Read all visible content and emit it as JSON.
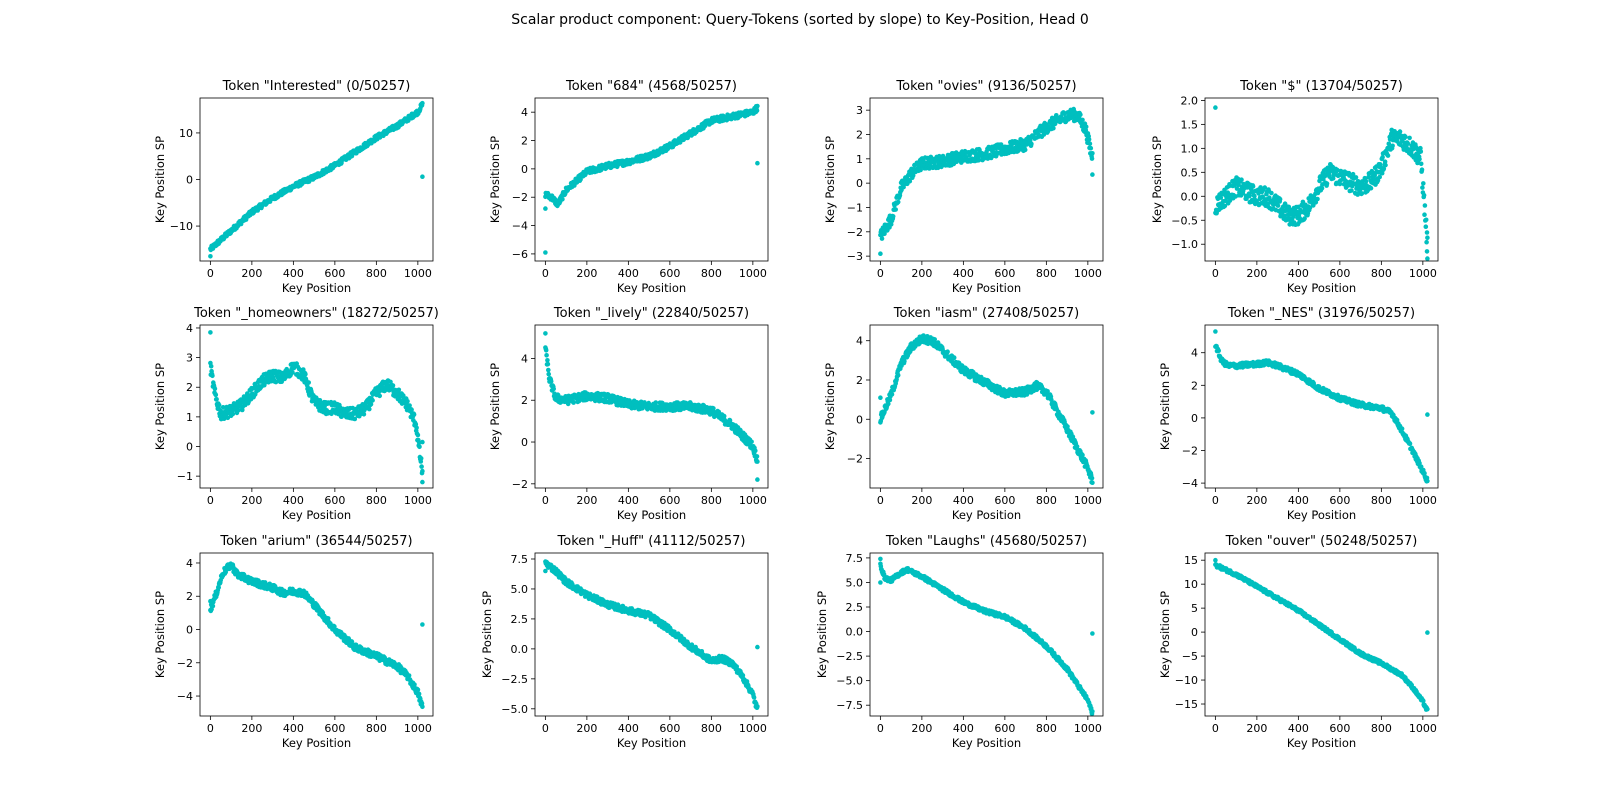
{
  "figure": {
    "title": "Scalar product component: Query-Tokens (sorted by slope) to Key-Position, Head 0",
    "marker_color": "#00BFBF"
  },
  "chart_data": [
    {
      "type": "scatter",
      "title": "Token \"Interested\" (0/50257)",
      "xlabel": "Key Position",
      "ylabel": "Key Position SP",
      "xlim": [
        -50,
        1073
      ],
      "ylim": [
        -17.5,
        17.5
      ],
      "xticks": [
        0,
        200,
        400,
        600,
        800,
        1000
      ],
      "yticks": [
        -10,
        0,
        10
      ],
      "curve": [
        [
          0,
          -15
        ],
        [
          100,
          -11
        ],
        [
          200,
          -7
        ],
        [
          300,
          -4
        ],
        [
          400,
          -1.5
        ],
        [
          500,
          0.5
        ],
        [
          600,
          3
        ],
        [
          700,
          6
        ],
        [
          800,
          9
        ],
        [
          900,
          11.5
        ],
        [
          1000,
          14.5
        ],
        [
          1020,
          16
        ]
      ],
      "noise": 0.5,
      "outliers": [
        [
          0,
          -16.5
        ],
        [
          1022,
          0.6
        ]
      ]
    },
    {
      "type": "scatter",
      "title": "Token \"684\" (4568/50257)",
      "xlabel": "Key Position",
      "ylabel": "Key Position SP",
      "xlim": [
        -50,
        1073
      ],
      "ylim": [
        -6.5,
        5
      ],
      "xticks": [
        0,
        200,
        400,
        600,
        800,
        1000
      ],
      "yticks": [
        -6,
        -4,
        -2,
        0,
        2,
        4
      ],
      "curve": [
        [
          0,
          -1.8
        ],
        [
          30,
          -2
        ],
        [
          60,
          -2.5
        ],
        [
          100,
          -1.5
        ],
        [
          200,
          -0.2
        ],
        [
          300,
          0.2
        ],
        [
          400,
          0.5
        ],
        [
          500,
          0.9
        ],
        [
          600,
          1.6
        ],
        [
          700,
          2.5
        ],
        [
          800,
          3.4
        ],
        [
          900,
          3.7
        ],
        [
          1000,
          4
        ],
        [
          1020,
          4.3
        ]
      ],
      "noise": 0.2,
      "outliers": [
        [
          0,
          -5.9
        ],
        [
          0,
          -2.8
        ],
        [
          1022,
          0.4
        ]
      ]
    },
    {
      "type": "scatter",
      "title": "Token \"ovies\" (9136/50257)",
      "xlabel": "Key Position",
      "ylabel": "Key Position SP",
      "xlim": [
        -50,
        1073
      ],
      "ylim": [
        -3.2,
        3.5
      ],
      "xticks": [
        0,
        200,
        400,
        600,
        800,
        1000
      ],
      "yticks": [
        -3,
        -2,
        -1,
        0,
        1,
        2,
        3
      ],
      "curve": [
        [
          0,
          -2.2
        ],
        [
          50,
          -1.5
        ],
        [
          100,
          -0.2
        ],
        [
          150,
          0.4
        ],
        [
          200,
          0.8
        ],
        [
          300,
          0.9
        ],
        [
          400,
          1.1
        ],
        [
          500,
          1.2
        ],
        [
          600,
          1.4
        ],
        [
          700,
          1.6
        ],
        [
          800,
          2.3
        ],
        [
          900,
          2.8
        ],
        [
          950,
          2.8
        ],
        [
          990,
          2.2
        ],
        [
          1020,
          1.1
        ]
      ],
      "noise": 0.25,
      "outliers": [
        [
          0,
          -2.9
        ],
        [
          1022,
          0.35
        ]
      ]
    },
    {
      "type": "scatter",
      "title": "Token \"$\" (13704/50257)",
      "xlabel": "Key Position",
      "ylabel": "Key Position SP",
      "xlim": [
        -50,
        1073
      ],
      "ylim": [
        -1.35,
        2.05
      ],
      "xticks": [
        0,
        200,
        400,
        600,
        800,
        1000
      ],
      "yticks": [
        -1.0,
        -0.5,
        0.0,
        0.5,
        1.0,
        1.5,
        2.0
      ],
      "curve": [
        [
          0,
          -0.2
        ],
        [
          50,
          0.0
        ],
        [
          100,
          0.2
        ],
        [
          150,
          0.1
        ],
        [
          200,
          0.0
        ],
        [
          250,
          0.0
        ],
        [
          300,
          -0.2
        ],
        [
          350,
          -0.4
        ],
        [
          400,
          -0.4
        ],
        [
          450,
          -0.2
        ],
        [
          500,
          0.2
        ],
        [
          550,
          0.5
        ],
        [
          600,
          0.4
        ],
        [
          650,
          0.3
        ],
        [
          700,
          0.2
        ],
        [
          750,
          0.3
        ],
        [
          800,
          0.6
        ],
        [
          850,
          1.2
        ],
        [
          900,
          1.2
        ],
        [
          950,
          1.0
        ],
        [
          990,
          0.8
        ],
        [
          1020,
          -0.9
        ]
      ],
      "noise": 0.2,
      "outliers": [
        [
          0,
          1.85
        ],
        [
          1022,
          -1.3
        ],
        [
          1020,
          -1.15
        ]
      ]
    },
    {
      "type": "scatter",
      "title": "Token \"_homeowners\" (18272/50257)",
      "xlabel": "Key Position",
      "ylabel": "Key Position SP",
      "xlim": [
        -50,
        1073
      ],
      "ylim": [
        -1.4,
        4.1
      ],
      "xticks": [
        0,
        200,
        400,
        600,
        800,
        1000
      ],
      "yticks": [
        -1,
        0,
        1,
        2,
        3,
        4
      ],
      "curve": [
        [
          0,
          2.7
        ],
        [
          20,
          1.8
        ],
        [
          50,
          1.1
        ],
        [
          100,
          1.2
        ],
        [
          150,
          1.4
        ],
        [
          200,
          1.8
        ],
        [
          250,
          2.2
        ],
        [
          300,
          2.4
        ],
        [
          350,
          2.3
        ],
        [
          400,
          2.7
        ],
        [
          450,
          2.4
        ],
        [
          500,
          1.5
        ],
        [
          550,
          1.3
        ],
        [
          600,
          1.3
        ],
        [
          650,
          1.1
        ],
        [
          700,
          1.1
        ],
        [
          750,
          1.3
        ],
        [
          800,
          1.8
        ],
        [
          850,
          2.1
        ],
        [
          900,
          1.8
        ],
        [
          950,
          1.4
        ],
        [
          990,
          0.8
        ],
        [
          1020,
          -0.8
        ]
      ],
      "noise": 0.2,
      "outliers": [
        [
          0,
          3.85
        ],
        [
          1022,
          -1.2
        ],
        [
          1022,
          0.15
        ]
      ]
    },
    {
      "type": "scatter",
      "title": "Token \"_lively\" (22840/50257)",
      "xlabel": "Key Position",
      "ylabel": "Key Position SP",
      "xlim": [
        -50,
        1073
      ],
      "ylim": [
        -2.2,
        5.6
      ],
      "xticks": [
        0,
        200,
        400,
        600,
        800,
        1000
      ],
      "yticks": [
        -2,
        0,
        2,
        4
      ],
      "curve": [
        [
          0,
          4.5
        ],
        [
          20,
          3
        ],
        [
          50,
          2.1
        ],
        [
          100,
          2.0
        ],
        [
          200,
          2.2
        ],
        [
          300,
          2.1
        ],
        [
          400,
          1.8
        ],
        [
          500,
          1.7
        ],
        [
          600,
          1.7
        ],
        [
          700,
          1.7
        ],
        [
          800,
          1.5
        ],
        [
          900,
          0.8
        ],
        [
          1000,
          -0.2
        ],
        [
          1020,
          -0.8
        ]
      ],
      "noise": 0.2,
      "outliers": [
        [
          0,
          5.2
        ],
        [
          1022,
          -1.8
        ]
      ]
    },
    {
      "type": "scatter",
      "title": "Token \"iasm\" (27408/50257)",
      "xlabel": "Key Position",
      "ylabel": "Key Position SP",
      "xlim": [
        -50,
        1073
      ],
      "ylim": [
        -3.5,
        4.8
      ],
      "xticks": [
        0,
        200,
        400,
        600,
        800,
        1000
      ],
      "yticks": [
        -2,
        0,
        2,
        4
      ],
      "curve": [
        [
          0,
          0
        ],
        [
          50,
          1.2
        ],
        [
          100,
          2.8
        ],
        [
          150,
          3.7
        ],
        [
          200,
          4.1
        ],
        [
          250,
          4.0
        ],
        [
          300,
          3.5
        ],
        [
          400,
          2.5
        ],
        [
          500,
          1.9
        ],
        [
          600,
          1.3
        ],
        [
          700,
          1.4
        ],
        [
          750,
          1.7
        ],
        [
          800,
          1.4
        ],
        [
          900,
          -0.5
        ],
        [
          1000,
          -2.5
        ],
        [
          1020,
          -3.1
        ]
      ],
      "noise": 0.2,
      "outliers": [
        [
          0,
          1.1
        ],
        [
          1022,
          0.35
        ]
      ]
    },
    {
      "type": "scatter",
      "title": "Token \"_NES\" (31976/50257)",
      "xlabel": "Key Position",
      "ylabel": "Key Position SP",
      "xlim": [
        -50,
        1073
      ],
      "ylim": [
        -4.3,
        5.7
      ],
      "xticks": [
        0,
        200,
        400,
        600,
        800,
        1000
      ],
      "yticks": [
        -4,
        -2,
        0,
        2,
        4
      ],
      "curve": [
        [
          0,
          4.5
        ],
        [
          30,
          3.5
        ],
        [
          60,
          3.2
        ],
        [
          100,
          3.2
        ],
        [
          200,
          3.3
        ],
        [
          250,
          3.4
        ],
        [
          300,
          3.2
        ],
        [
          400,
          2.7
        ],
        [
          500,
          1.8
        ],
        [
          600,
          1.2
        ],
        [
          700,
          0.8
        ],
        [
          800,
          0.6
        ],
        [
          850,
          0.3
        ],
        [
          900,
          -0.8
        ],
        [
          950,
          -2
        ],
        [
          1020,
          -3.8
        ]
      ],
      "noise": 0.15,
      "outliers": [
        [
          0,
          5.3
        ],
        [
          1022,
          0.2
        ]
      ]
    },
    {
      "type": "scatter",
      "title": "Token \"arium\" (36544/50257)",
      "xlabel": "Key Position",
      "ylabel": "Key Position SP",
      "xlim": [
        -50,
        1073
      ],
      "ylim": [
        -5.2,
        4.6
      ],
      "xticks": [
        0,
        200,
        400,
        600,
        800,
        1000
      ],
      "yticks": [
        -4,
        -2,
        0,
        2,
        4
      ],
      "curve": [
        [
          0,
          1.2
        ],
        [
          30,
          2.2
        ],
        [
          60,
          3.4
        ],
        [
          100,
          3.9
        ],
        [
          130,
          3.3
        ],
        [
          200,
          2.9
        ],
        [
          300,
          2.5
        ],
        [
          350,
          2.2
        ],
        [
          400,
          2.3
        ],
        [
          450,
          2.2
        ],
        [
          500,
          1.5
        ],
        [
          600,
          0
        ],
        [
          700,
          -1.1
        ],
        [
          800,
          -1.6
        ],
        [
          900,
          -2.2
        ],
        [
          950,
          -2.8
        ],
        [
          1000,
          -3.8
        ],
        [
          1020,
          -4.6
        ]
      ],
      "noise": 0.2,
      "outliers": [
        [
          0,
          1.7
        ],
        [
          1022,
          0.3
        ]
      ]
    },
    {
      "type": "scatter",
      "title": "Token \"_Huff\" (41112/50257)",
      "xlabel": "Key Position",
      "ylabel": "Key Position SP",
      "xlim": [
        -50,
        1073
      ],
      "ylim": [
        -5.6,
        8.0
      ],
      "xticks": [
        0,
        200,
        400,
        600,
        800,
        1000
      ],
      "yticks": [
        -5.0,
        -2.5,
        0.0,
        2.5,
        5.0,
        7.5
      ],
      "curve": [
        [
          0,
          7.2
        ],
        [
          50,
          6.5
        ],
        [
          100,
          5.6
        ],
        [
          200,
          4.5
        ],
        [
          300,
          3.7
        ],
        [
          400,
          3.2
        ],
        [
          500,
          2.8
        ],
        [
          600,
          1.6
        ],
        [
          700,
          0.2
        ],
        [
          800,
          -1
        ],
        [
          850,
          -0.8
        ],
        [
          900,
          -1.2
        ],
        [
          950,
          -2.3
        ],
        [
          1000,
          -3.8
        ],
        [
          1020,
          -5
        ]
      ],
      "noise": 0.25,
      "outliers": [
        [
          0,
          6.5
        ],
        [
          1022,
          0.15
        ]
      ]
    },
    {
      "type": "scatter",
      "title": "Token \"Laughs\" (45680/50257)",
      "xlabel": "Key Position",
      "ylabel": "Key Position SP",
      "xlim": [
        -50,
        1073
      ],
      "ylim": [
        -8.6,
        8.0
      ],
      "xticks": [
        0,
        200,
        400,
        600,
        800,
        1000
      ],
      "yticks": [
        -7.5,
        -5.0,
        -2.5,
        0.0,
        2.5,
        5.0,
        7.5
      ],
      "curve": [
        [
          0,
          6.8
        ],
        [
          20,
          5.5
        ],
        [
          50,
          5.2
        ],
        [
          100,
          6
        ],
        [
          130,
          6.3
        ],
        [
          200,
          5.6
        ],
        [
          300,
          4.3
        ],
        [
          400,
          3
        ],
        [
          500,
          2.1
        ],
        [
          600,
          1.5
        ],
        [
          700,
          0.3
        ],
        [
          800,
          -1.5
        ],
        [
          900,
          -3.8
        ],
        [
          1000,
          -7
        ],
        [
          1020,
          -8.2
        ]
      ],
      "noise": 0.2,
      "outliers": [
        [
          0,
          7.4
        ],
        [
          0,
          5.0
        ],
        [
          1022,
          -0.2
        ]
      ]
    },
    {
      "type": "scatter",
      "title": "Token \"ouver\" (50248/50257)",
      "xlabel": "Key Position",
      "ylabel": "Key Position SP",
      "xlim": [
        -50,
        1073
      ],
      "ylim": [
        -17.5,
        16.5
      ],
      "xticks": [
        0,
        200,
        400,
        600,
        800,
        1000
      ],
      "yticks": [
        -15,
        -10,
        -5,
        0,
        5,
        10,
        15
      ],
      "curve": [
        [
          0,
          14
        ],
        [
          100,
          12
        ],
        [
          200,
          9.5
        ],
        [
          300,
          7
        ],
        [
          400,
          4.5
        ],
        [
          500,
          1.5
        ],
        [
          600,
          -1.5
        ],
        [
          700,
          -4.5
        ],
        [
          800,
          -6.5
        ],
        [
          900,
          -9
        ],
        [
          950,
          -11.5
        ],
        [
          1000,
          -14.5
        ],
        [
          1020,
          -16.3
        ]
      ],
      "noise": 0.35,
      "outliers": [
        [
          0,
          15
        ],
        [
          1022,
          -0.1
        ]
      ]
    }
  ]
}
